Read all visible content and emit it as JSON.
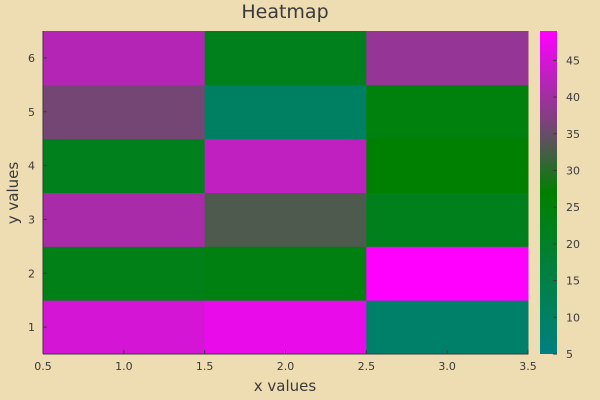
{
  "chart_data": {
    "type": "heatmap",
    "title": "Heatmap",
    "xlabel": "x values",
    "ylabel": "y values",
    "x": [
      1.0,
      2.0,
      3.0
    ],
    "y": [
      1,
      2,
      3,
      4,
      5,
      6
    ],
    "xlim": [
      0.5,
      3.5
    ],
    "ylim": [
      0.5,
      6.5
    ],
    "x_ticks": [
      "0.5",
      "1.0",
      "1.5",
      "2.0",
      "2.5",
      "3.0",
      "3.5"
    ],
    "y_ticks": [
      "1",
      "2",
      "3",
      "4",
      "5",
      "6"
    ],
    "z": [
      [
        45,
        47,
        9
      ],
      [
        23,
        24,
        49
      ],
      [
        41,
        33,
        22
      ],
      [
        22,
        43,
        27
      ],
      [
        36,
        10,
        25
      ],
      [
        42,
        22,
        39
      ]
    ],
    "colorbar": {
      "limits": [
        5,
        49
      ],
      "ticks": [
        5,
        10,
        15,
        20,
        25,
        30,
        35,
        40,
        45
      ],
      "colors": [
        {
          "v": 5,
          "c": "#008080"
        },
        {
          "v": 27,
          "c": "#008000"
        },
        {
          "v": 37,
          "c": "#804080"
        },
        {
          "v": 49,
          "c": "#ff00ff"
        }
      ]
    },
    "grid": false,
    "background": "#eedcb3"
  }
}
